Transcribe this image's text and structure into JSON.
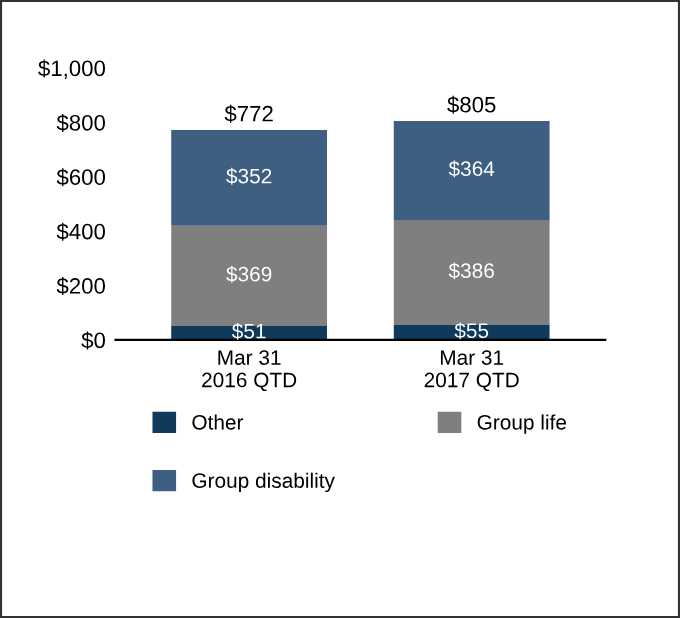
{
  "chart_data": {
    "type": "bar",
    "stacked": true,
    "categories": [
      "Mar 31\n2016 QTD",
      "Mar 31\n2017 QTD"
    ],
    "series": [
      {
        "name": "Other",
        "color": "#0f3a5c",
        "values": [
          51,
          55
        ],
        "value_labels": [
          "$51",
          "$55"
        ]
      },
      {
        "name": "Group life",
        "color": "#7f7f7f",
        "values": [
          369,
          386
        ],
        "value_labels": [
          "$369",
          "$386"
        ]
      },
      {
        "name": "Group disability",
        "color": "#3e5e82",
        "values": [
          352,
          364
        ],
        "value_labels": [
          "$352",
          "$364"
        ]
      }
    ],
    "totals": [
      "$772",
      "$805"
    ],
    "ylim": [
      0,
      1000
    ],
    "yticks": [
      {
        "value": 0,
        "label": "$0"
      },
      {
        "value": 200,
        "label": "$200"
      },
      {
        "value": 400,
        "label": "$400"
      },
      {
        "value": 600,
        "label": "$600"
      },
      {
        "value": 800,
        "label": "$800"
      },
      {
        "value": 1000,
        "label": "$1,000"
      }
    ],
    "grid": false,
    "legend": "bottom"
  }
}
